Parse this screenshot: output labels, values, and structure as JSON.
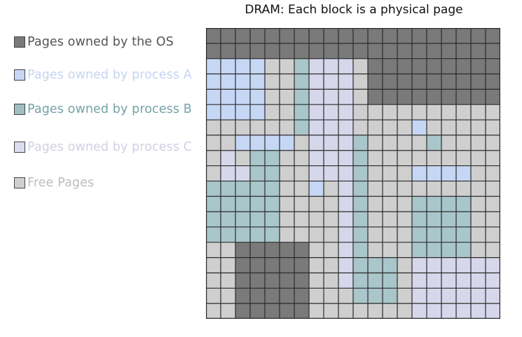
{
  "title": "DRAM: Each block is a physical page",
  "legend": [
    {
      "key": "os",
      "label": "Pages owned by the OS",
      "swatch_color": "#7a7a7a",
      "text_color": "#555555"
    },
    {
      "key": "a",
      "label": "Pages owned by process A",
      "swatch_color": "#c6d7f5",
      "text_color": "#c3d5f2"
    },
    {
      "key": "b",
      "label": "Pages owned by process B",
      "swatch_color": "#9fbfc3",
      "text_color": "#74a2a8"
    },
    {
      "key": "c",
      "label": "Pages owned by process C",
      "swatch_color": "#dcdcef",
      "text_color": "#d0d0e6"
    },
    {
      "key": "free",
      "label": "Free Pages",
      "swatch_color": "#cfcfcf",
      "text_color": "#bdbdbd"
    }
  ],
  "colors": {
    "os": "#7a7a7a",
    "a": "#c6d7f5",
    "b": "#a9c6ca",
    "c": "#d7d7ec",
    "free": "#cfcfcf",
    "grid_line": "#2b2b2b"
  },
  "grid": {
    "rows": [
      "OOOOOOOOOOOOOOOOOOOO",
      "OOOOOOOOOOOOOOOOOOOO",
      "AAAAFFBCCCFOOOOOOOOO",
      "AAAAFFBCCCFOOOOOOOOO",
      "AAAAFFBCCCFOOOOOOOOO",
      "AAAAFFBCCCFFFFFFFFFF",
      "FFFFFFBCCCFFFFAFFFFF",
      "FFAAAAFCCCBFFFFBFFFF",
      "FCFBBFFCCCBFFFFFFFFF",
      "FCCBBFFCCCBFFFAAAAFF",
      "BBBBBFFAFCBFFFFFFFFF",
      "BBBBBFFFFCBFFFBBBBFF",
      "BBBBBFFFFCBFFFBBBBFF",
      "BBBBBFFFFCBFFFBBBBFF",
      "FFOOOOOFFCBFFFBBBBFF",
      "FFOOOOOFFCBBBFCCCCCC",
      "FFOOOOOFFCBBBFCCCCCC",
      "FFOOOOOFFFBBBFCCCCCC",
      "FFOOOOOFFFFFFFCCCCCC"
    ]
  }
}
